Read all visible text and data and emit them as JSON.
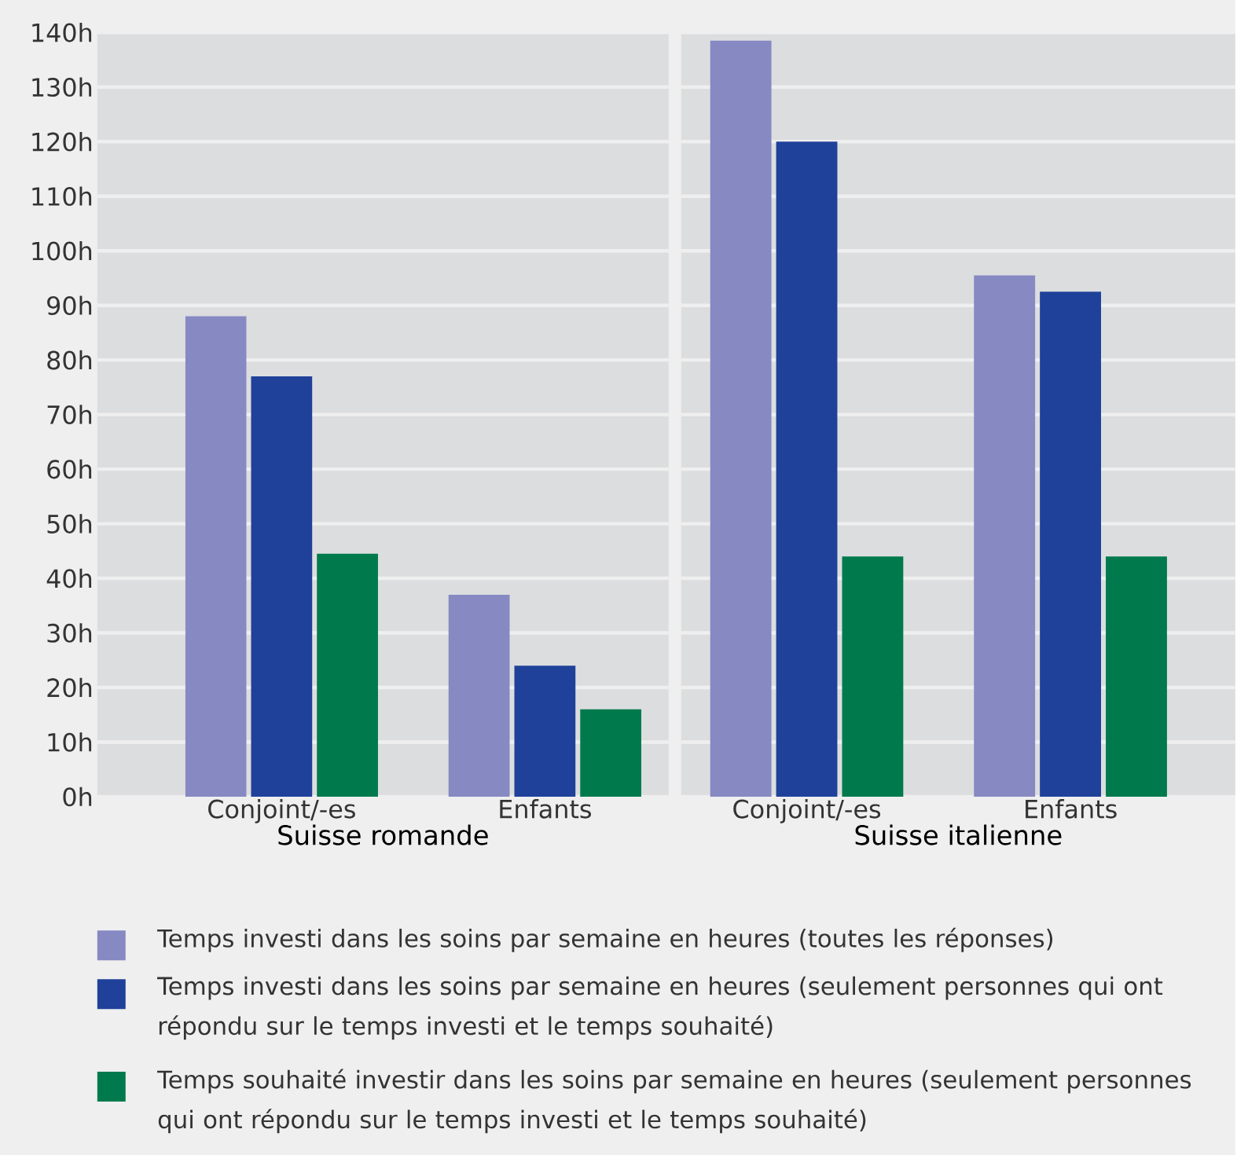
{
  "chart_data": [
    {
      "type": "bar",
      "categories": [
        "Conjoint/-es",
        "Enfants"
      ],
      "xlabel": "Suisse romande",
      "series": [
        {
          "name": "Temps investi dans les soins par semaine en heures (toutes les réponses)",
          "color": "#8789c3",
          "values": [
            88,
            37
          ]
        },
        {
          "name": "Temps investi dans les soins par semaine en heures (seulement personnes qui ont répondu sur le temps investi et le temps souhaité)",
          "color": "#1f419a",
          "values": [
            77,
            24
          ]
        },
        {
          "name": "Temps souhaité investir dans les soins par semaine en heures (seulement personnes qui ont répondu sur le temps investi et le temps souhaité)",
          "color": "#007a4d",
          "values": [
            44.5,
            16
          ]
        }
      ],
      "ylim": [
        0,
        140
      ],
      "yticks": [
        {
          "value": 0,
          "label": "0h"
        },
        {
          "value": 10,
          "label": "10h"
        },
        {
          "value": 20,
          "label": "20h"
        },
        {
          "value": 30,
          "label": "30h"
        },
        {
          "value": 40,
          "label": "40h"
        },
        {
          "value": 50,
          "label": "50h"
        },
        {
          "value": 60,
          "label": "60h"
        },
        {
          "value": 70,
          "label": "70h"
        },
        {
          "value": 80,
          "label": "80h"
        },
        {
          "value": 90,
          "label": "90h"
        },
        {
          "value": 100,
          "label": "100h"
        },
        {
          "value": 110,
          "label": "110h"
        },
        {
          "value": 120,
          "label": "120h"
        },
        {
          "value": 130,
          "label": "130h"
        },
        {
          "value": 140,
          "label": "140h"
        }
      ],
      "grid": "y",
      "legend": "bottom"
    },
    {
      "type": "bar",
      "categories": [
        "Conjoint/-es",
        "Enfants"
      ],
      "xlabel": "Suisse italienne",
      "series": [
        {
          "color": "#8789c3",
          "values": [
            138.5,
            95.5
          ]
        },
        {
          "color": "#1f419a",
          "values": [
            120,
            92.5
          ]
        },
        {
          "color": "#007a4d",
          "values": [
            44,
            44
          ]
        }
      ],
      "ylim": [
        0,
        140
      ],
      "yticks": [
        0,
        10,
        20,
        30,
        40,
        50,
        60,
        70,
        80,
        90,
        100,
        110,
        120,
        130,
        140
      ],
      "grid": "y",
      "tick_labels": "x"
    }
  ]
}
